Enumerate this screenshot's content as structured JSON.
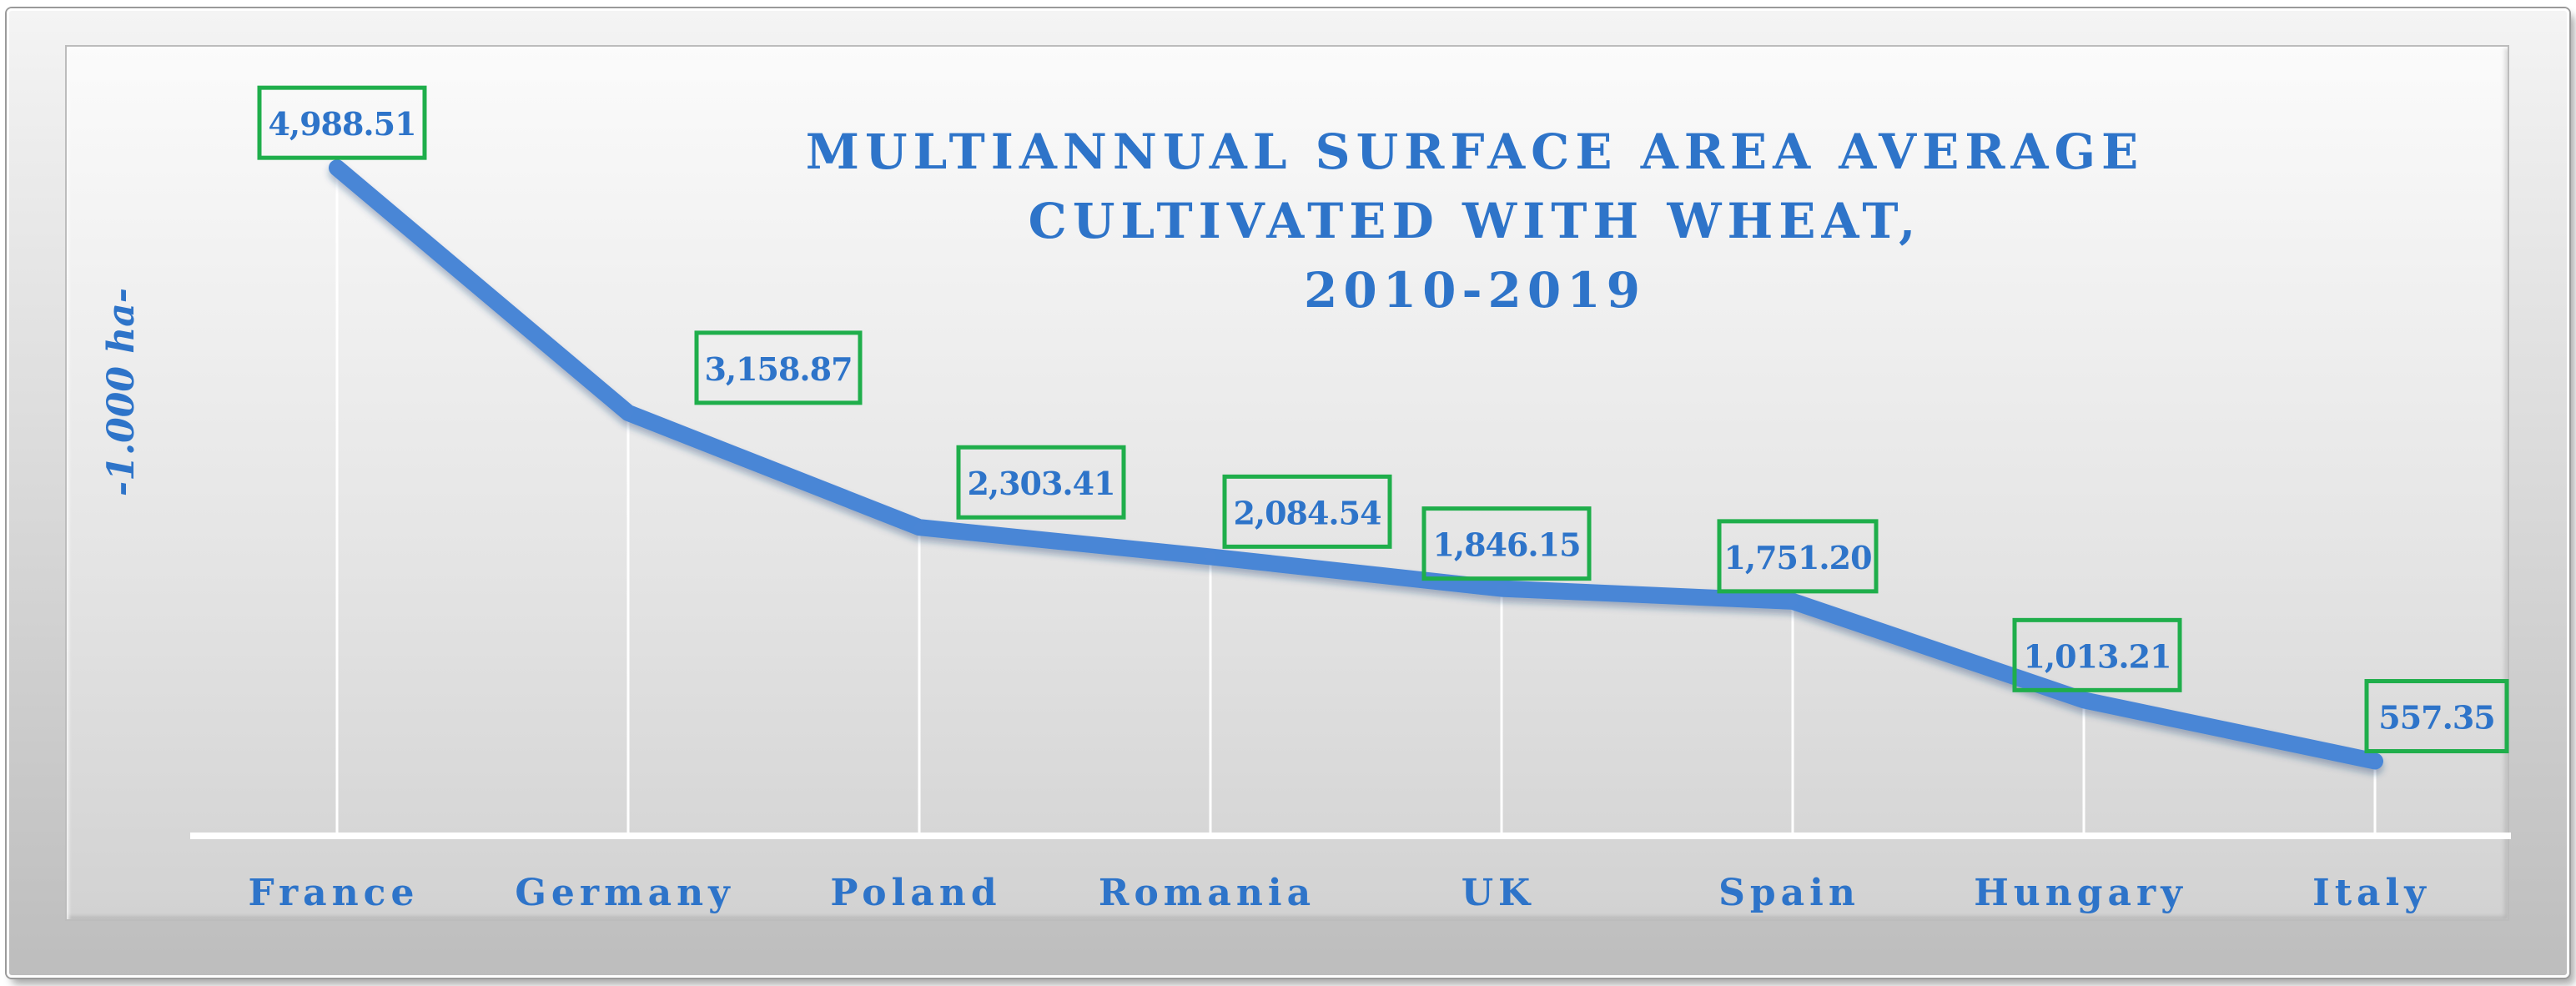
{
  "chart_data": {
    "type": "line",
    "title_lines": [
      "MULTIANNUAL SURFACE AREA AVERAGE",
      "CULTIVATED WITH WHEAT,",
      "2010-2019"
    ],
    "ylabel": "-1.000 ha-",
    "categories": [
      "France",
      "Germany",
      "Poland",
      "Romania",
      "UK",
      "Spain",
      "Hungary",
      "Italy"
    ],
    "values": [
      4988.51,
      3158.87,
      2303.41,
      2084.54,
      1846.15,
      1751.2,
      1013.21,
      557.35
    ],
    "data_labels": [
      "4,988.51",
      "3,158.87",
      "2,303.41",
      "2,084.54",
      "1,846.15",
      "1,751.20",
      "1,013.21",
      "557.35"
    ],
    "ylim": [
      0,
      5600
    ],
    "grid": false,
    "drop_lines": true,
    "legend": "none",
    "colors": {
      "line": "#4a86d6",
      "label_text": "#2e74c9",
      "label_border": "#1fae4b",
      "title": "#2e74c9"
    }
  }
}
